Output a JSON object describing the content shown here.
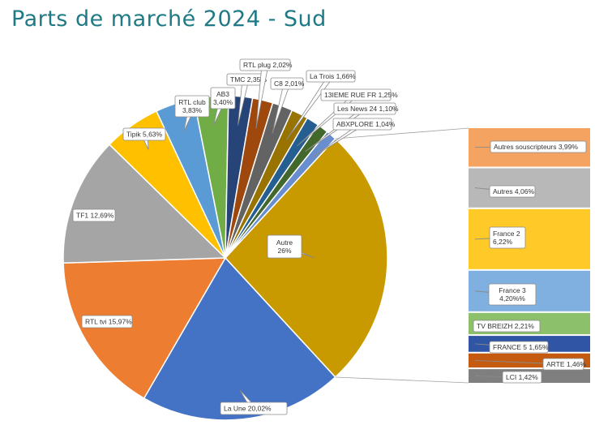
{
  "title": "Parts de marché 2024 - Sud",
  "chart_data": {
    "type": "pie",
    "subtype": "bar-of-pie",
    "title": "Parts de marché 2024 - Sud",
    "slices": [
      {
        "label": "Autre",
        "value": 26,
        "display": "Autre\n26%",
        "color": "#c89a00"
      },
      {
        "label": "La Une",
        "value": 20.02,
        "display": "La Une 20,02%",
        "color": "#4472c4"
      },
      {
        "label": "RTL tvi",
        "value": 15.97,
        "display": "RTL tvi 15,97%",
        "color": "#ed7d31"
      },
      {
        "label": "TF1",
        "value": 12.69,
        "display": "TF1 12,69%",
        "color": "#a5a5a5"
      },
      {
        "label": "Tipik",
        "value": 5.63,
        "display": "Tipik 5,63%",
        "color": "#ffc000"
      },
      {
        "label": "RTL club",
        "value": 3.83,
        "display": "RTL club\n3,83%",
        "color": "#5b9bd5"
      },
      {
        "label": "AB3",
        "value": 3.4,
        "display": "AB3\n3,40%",
        "color": "#70ad47"
      },
      {
        "label": "TMC",
        "value": 2.35,
        "display": "TMC 2,35%",
        "color": "#264478"
      },
      {
        "label": "RTL plug",
        "value": 2.02,
        "display": "RTL plug 2,02%",
        "color": "#9e480e"
      },
      {
        "label": "C8",
        "value": 2.01,
        "display": "C8 2,01%",
        "color": "#636363"
      },
      {
        "label": "La Trois",
        "value": 1.66,
        "display": "La Trois 1,66%",
        "color": "#997300"
      },
      {
        "label": "13IEME RUE FR",
        "value": 1.25,
        "display": "13IEME RUE FR 1,25%",
        "color": "#255e91"
      },
      {
        "label": "Les News 24",
        "value": 1.1,
        "display": "Les News 24 1,10%",
        "color": "#43682b"
      },
      {
        "label": "ABXPLORE",
        "value": 1.04,
        "display": "ABXPLORE 1,04%",
        "color": "#698ed0"
      }
    ],
    "breakdown": {
      "of": "Autre",
      "items": [
        {
          "label": "Autres souscripteurs",
          "value": 3.99,
          "display": "Autres souscripteurs 3,99%",
          "color": "#f4a460"
        },
        {
          "label": "Autres",
          "value": 4.06,
          "display": "Autres 4,06%",
          "color": "#b8b8b8"
        },
        {
          "label": "France 2",
          "value": 6.22,
          "display": "France 2\n6,22%",
          "color": "#ffca28"
        },
        {
          "label": "France 3",
          "value": 4.2,
          "display": "France 3\n4,20%%",
          "color": "#7fb0e0"
        },
        {
          "label": "TV BREIZH",
          "value": 2.21,
          "display": "TV BREIZH 2,21%",
          "color": "#8cc06a"
        },
        {
          "label": "FRANCE 5",
          "value": 1.65,
          "display": "FRANCE 5 1,65%",
          "color": "#2f55a4"
        },
        {
          "label": "ARTE",
          "value": 1.46,
          "display": "ARTE 1,46%",
          "color": "#c55a11"
        },
        {
          "label": "LCI",
          "value": 1.42,
          "display": "LCI 1,42%",
          "color": "#7f7f7f"
        }
      ]
    }
  }
}
